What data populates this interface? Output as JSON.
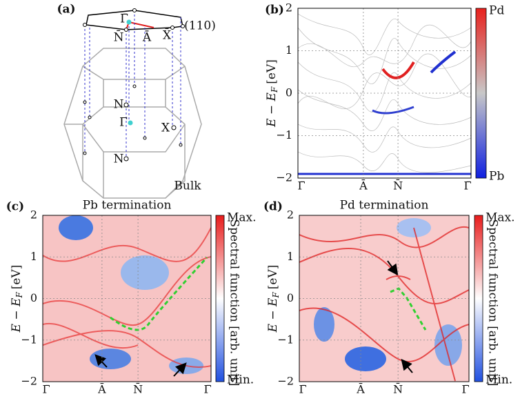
{
  "panels": [
    {
      "label": "(a)",
      "labels": [
        "Γ̄",
        "N̄",
        "Ā",
        "X̄",
        "(110)",
        "N",
        "Γ",
        "X",
        "N",
        "Bulk"
      ]
    },
    {
      "label": "(b)",
      "y_label": {
        "main": "E − E",
        "sub": "F",
        "unit": "[eV]"
      },
      "y_ticks": [
        "2",
        "1",
        "0",
        "−1",
        "−2"
      ],
      "x_ticks": [
        "Γ̄",
        "Ā",
        "N̄",
        "Γ̄"
      ],
      "colorbar": {
        "top": "Pd",
        "bottom": "Pb"
      }
    },
    {
      "label": "(c)",
      "title": "Pb termination",
      "y_label": {
        "main": "E − E",
        "sub": "F",
        "unit": "[eV]"
      },
      "y_ticks": [
        "2",
        "1",
        "0",
        "−1",
        "−2"
      ],
      "x_ticks": [
        "Γ̄",
        "Ā",
        "N̄",
        "Γ̄"
      ],
      "colorbar": {
        "top": "Max.",
        "bottom": "Min.",
        "label": "Spectral function [arb. unit]"
      }
    },
    {
      "label": "(d)",
      "title": "Pd termination",
      "y_label": {
        "main": "E − E",
        "sub": "F",
        "unit": "[eV]"
      },
      "y_ticks": [
        "2",
        "1",
        "0",
        "−1",
        "−2"
      ],
      "x_ticks": [
        "Γ̄",
        "Ā",
        "N̄",
        "Γ̄"
      ],
      "colorbar": {
        "top": "Max.",
        "bottom": "Min.",
        "label": "Spectral function [arb. unit]"
      }
    }
  ]
}
